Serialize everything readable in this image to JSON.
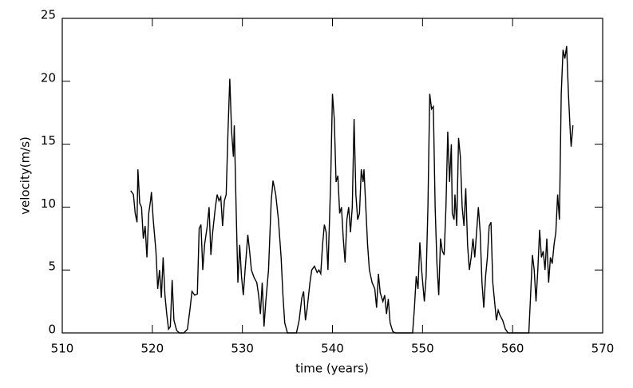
{
  "chart_data": {
    "type": "line",
    "x_label": "time (years)",
    "y_label": "velocity(m/s)",
    "xlim": [
      510,
      570
    ],
    "xticks": [
      510,
      520,
      530,
      540,
      550,
      560,
      570
    ],
    "ylim": [
      0,
      25
    ],
    "yticks": [
      0,
      5,
      10,
      15,
      20,
      25
    ],
    "series": [
      {
        "color": "#000000",
        "x": [
          517.6,
          517.9,
          518.1,
          518.3,
          518.4,
          518.6,
          518.8,
          519.0,
          519.2,
          519.4,
          519.6,
          519.8,
          519.9,
          520.1,
          520.4,
          520.6,
          520.8,
          521.0,
          521.2,
          521.4,
          521.6,
          521.8,
          522.0,
          522.2,
          522.4,
          522.7,
          523.0,
          523.5,
          523.9,
          524.2,
          524.4,
          524.7,
          525.0,
          525.2,
          525.4,
          525.6,
          525.8,
          526.1,
          526.3,
          526.5,
          526.7,
          527.0,
          527.2,
          527.4,
          527.6,
          527.8,
          528.0,
          528.2,
          528.4,
          528.6,
          528.8,
          529.0,
          529.1,
          529.3,
          529.5,
          529.7,
          529.9,
          530.1,
          530.3,
          530.6,
          530.8,
          531.0,
          531.3,
          531.6,
          531.8,
          532.0,
          532.2,
          532.4,
          532.6,
          532.9,
          533.2,
          533.4,
          533.7,
          534.0,
          534.3,
          534.5,
          534.7,
          535.0,
          535.5,
          536.0,
          536.3,
          536.6,
          536.8,
          537.0,
          537.2,
          537.5,
          537.7,
          538.0,
          538.3,
          538.5,
          538.7,
          538.9,
          539.1,
          539.3,
          539.5,
          539.8,
          540.0,
          540.2,
          540.4,
          540.6,
          540.8,
          541.0,
          541.2,
          541.4,
          541.6,
          541.8,
          542.0,
          542.2,
          542.4,
          542.6,
          542.8,
          543.0,
          543.2,
          543.4,
          543.5,
          543.7,
          543.9,
          544.1,
          544.4,
          544.7,
          544.9,
          545.1,
          545.3,
          545.6,
          545.8,
          546.0,
          546.2,
          546.4,
          546.7,
          547.0,
          548.0,
          548.9,
          549.1,
          549.3,
          549.5,
          549.7,
          549.9,
          550.2,
          550.4,
          550.6,
          550.8,
          551.0,
          551.2,
          551.4,
          551.6,
          551.8,
          552.0,
          552.2,
          552.4,
          552.6,
          552.8,
          553.0,
          553.2,
          553.3,
          553.5,
          553.6,
          553.8,
          554.0,
          554.2,
          554.4,
          554.6,
          554.8,
          555.0,
          555.2,
          555.4,
          555.6,
          555.8,
          556.0,
          556.2,
          556.4,
          556.6,
          556.8,
          557.0,
          557.2,
          557.4,
          557.6,
          557.8,
          558.0,
          558.2,
          558.4,
          558.6,
          558.9,
          559.2,
          559.5,
          560.0,
          561.0,
          561.8,
          562.0,
          562.2,
          562.4,
          562.6,
          562.8,
          563.0,
          563.2,
          563.4,
          563.6,
          563.8,
          564.0,
          564.2,
          564.4,
          564.6,
          564.8,
          565.0,
          565.2,
          565.4,
          565.6,
          565.8,
          566.0,
          566.2,
          566.4,
          566.5,
          566.7
        ],
        "values": [
          11.3,
          11.0,
          9.5,
          8.8,
          13.0,
          10.3,
          10.0,
          7.5,
          8.5,
          6.0,
          9.5,
          10.5,
          11.2,
          9.0,
          6.5,
          3.5,
          5.0,
          2.8,
          6.0,
          3.0,
          1.5,
          0.3,
          0.5,
          4.2,
          1.0,
          0.2,
          0.0,
          0.0,
          0.3,
          2.0,
          3.3,
          3.0,
          3.1,
          8.3,
          8.6,
          5.0,
          7.0,
          8.5,
          10.0,
          6.2,
          8.0,
          10.0,
          11.0,
          10.5,
          10.8,
          8.5,
          10.5,
          11.0,
          16.0,
          20.2,
          16.0,
          14.0,
          16.5,
          10.0,
          4.0,
          7.0,
          4.5,
          3.0,
          5.0,
          7.8,
          6.5,
          5.0,
          4.4,
          4.0,
          3.0,
          1.5,
          4.0,
          0.5,
          2.5,
          5.0,
          10.5,
          12.1,
          11.0,
          9.0,
          6.0,
          3.0,
          0.8,
          0.0,
          0.0,
          0.0,
          1.0,
          2.8,
          3.3,
          1.0,
          2.0,
          4.0,
          5.0,
          5.3,
          4.8,
          5.0,
          4.7,
          7.0,
          8.6,
          8.0,
          5.0,
          12.0,
          19.0,
          17.0,
          12.0,
          12.5,
          9.5,
          10.0,
          7.5,
          5.6,
          9.0,
          10.0,
          8.0,
          10.0,
          17.0,
          11.0,
          9.0,
          9.5,
          13.0,
          12.0,
          13.0,
          10.0,
          7.0,
          5.0,
          4.0,
          3.5,
          2.0,
          4.7,
          3.2,
          2.5,
          3.0,
          1.5,
          2.7,
          0.8,
          0.1,
          0.0,
          0.0,
          0.0,
          2.0,
          4.5,
          3.5,
          7.2,
          5.0,
          2.5,
          4.5,
          10.0,
          19.0,
          17.8,
          18.0,
          10.0,
          5.5,
          3.0,
          7.5,
          6.5,
          6.2,
          10.0,
          16.0,
          12.0,
          15.0,
          9.5,
          9.0,
          11.0,
          8.5,
          15.5,
          14.0,
          10.0,
          8.5,
          11.5,
          7.0,
          5.0,
          6.0,
          7.5,
          6.0,
          8.0,
          10.0,
          8.0,
          4.0,
          2.0,
          4.5,
          6.0,
          8.5,
          8.8,
          4.0,
          2.5,
          1.0,
          1.8,
          1.4,
          1.0,
          0.3,
          0.0,
          0.0,
          0.0,
          0.0,
          3.0,
          6.2,
          5.0,
          2.5,
          5.0,
          8.2,
          6.0,
          6.5,
          5.0,
          7.5,
          4.0,
          6.0,
          5.5,
          7.0,
          8.0,
          11.0,
          9.0,
          19.0,
          22.5,
          21.8,
          22.8,
          19.0,
          16.0,
          14.8,
          16.5
        ]
      }
    ]
  }
}
